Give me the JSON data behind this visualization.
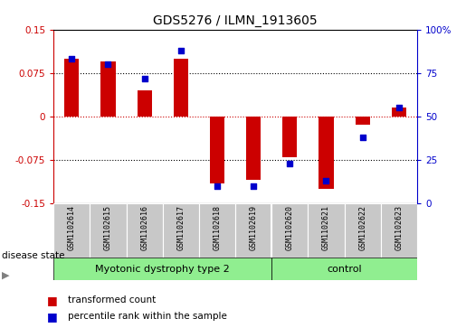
{
  "title": "GDS5276 / ILMN_1913605",
  "samples": [
    "GSM1102614",
    "GSM1102615",
    "GSM1102616",
    "GSM1102617",
    "GSM1102618",
    "GSM1102619",
    "GSM1102620",
    "GSM1102621",
    "GSM1102622",
    "GSM1102623"
  ],
  "red_values": [
    0.1,
    0.095,
    0.045,
    0.1,
    -0.115,
    -0.11,
    -0.07,
    -0.125,
    -0.015,
    0.015
  ],
  "blue_values": [
    83,
    80,
    72,
    88,
    10,
    10,
    23,
    13,
    38,
    55
  ],
  "ylim_left": [
    -0.15,
    0.15
  ],
  "ylim_right": [
    0,
    100
  ],
  "yticks_left": [
    -0.15,
    -0.075,
    0,
    0.075,
    0.15
  ],
  "yticks_right": [
    0,
    25,
    50,
    75,
    100
  ],
  "ytick_labels_left": [
    "-0.15",
    "-0.075",
    "0",
    "0.075",
    "0.15"
  ],
  "ytick_labels_right": [
    "0",
    "25",
    "50",
    "75",
    "100%"
  ],
  "group1_label": "Myotonic dystrophy type 2",
  "group2_label": "control",
  "group1_indices": [
    0,
    1,
    2,
    3,
    4,
    5
  ],
  "group2_indices": [
    6,
    7,
    8,
    9
  ],
  "group_color": "#90ee90",
  "disease_state_label": "disease state",
  "legend_red": "transformed count",
  "legend_blue": "percentile rank within the sample",
  "bar_color": "#cc0000",
  "dot_color": "#0000cc",
  "plot_bg": "#ffffff",
  "label_bg": "#c8c8c8",
  "tick_color_left": "#cc0000",
  "tick_color_right": "#0000cc",
  "bar_width": 0.4,
  "dot_size": 22,
  "dot_marker": "s"
}
